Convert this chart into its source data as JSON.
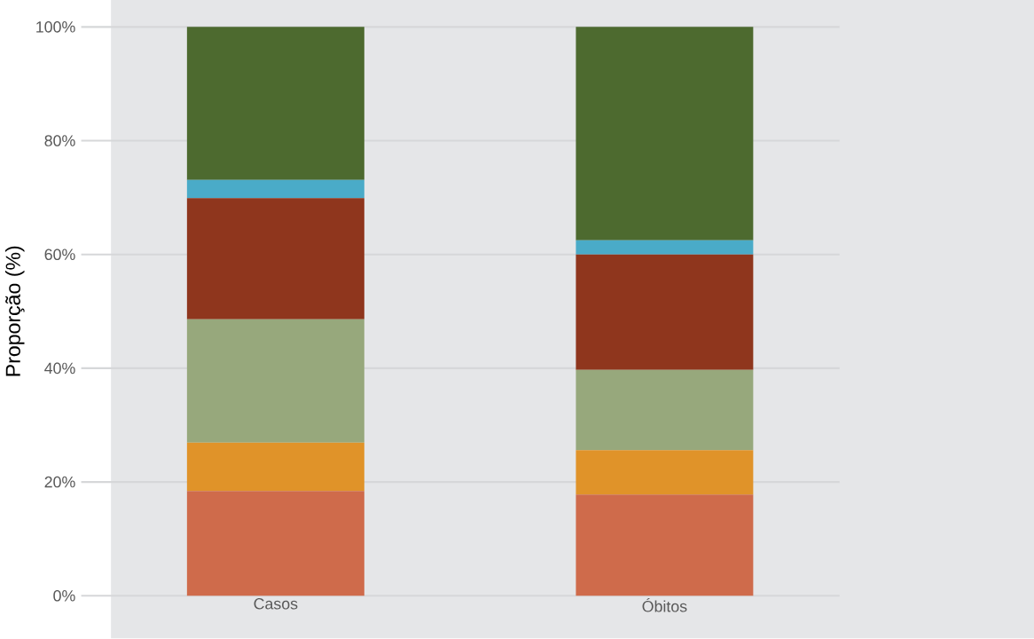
{
  "chart_data": {
    "type": "bar",
    "stacked": true,
    "ylabel": "Proporção (%)",
    "categories": [
      "Casos",
      "Óbitos"
    ],
    "series": [
      {
        "color": "#cf6b4b",
        "values": [
          18.4,
          17.8
        ]
      },
      {
        "color": "#e09329",
        "values": [
          8.5,
          7.8
        ]
      },
      {
        "color": "#97a87c",
        "values": [
          21.7,
          14.1
        ]
      },
      {
        "color": "#8f361d",
        "values": [
          21.3,
          20.3
        ]
      },
      {
        "color": "#4aabc8",
        "values": [
          3.2,
          2.5
        ]
      },
      {
        "color": "#4d6a2f",
        "values": [
          26.9,
          37.5
        ]
      }
    ],
    "ylim": [
      0,
      100
    ],
    "yticks": [
      {
        "value": 0,
        "label": "0%"
      },
      {
        "value": 20,
        "label": "20%"
      },
      {
        "value": 40,
        "label": "40%"
      },
      {
        "value": 60,
        "label": "60%"
      },
      {
        "value": 80,
        "label": "80%"
      },
      {
        "value": 100,
        "label": "100%"
      }
    ],
    "grid": "y"
  }
}
